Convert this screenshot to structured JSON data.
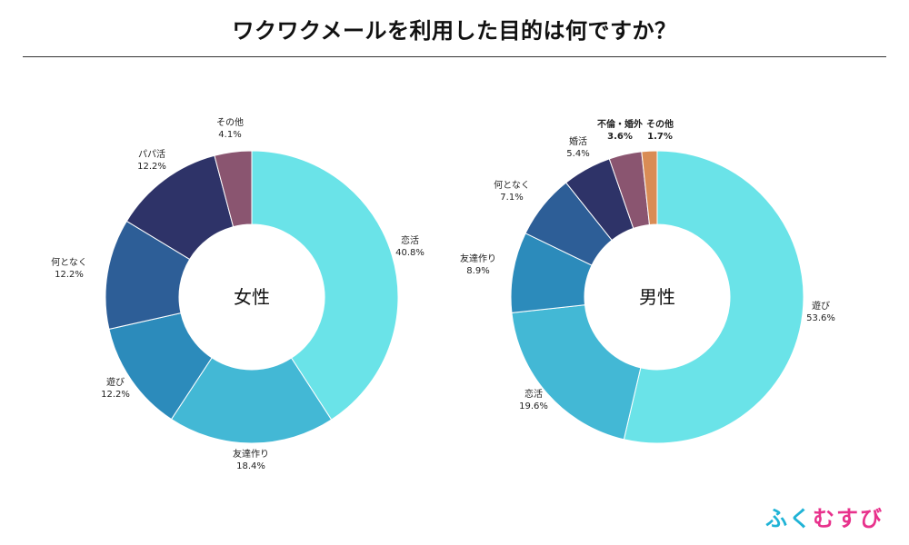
{
  "title": "ワクワクメールを利用した目的は何ですか？",
  "brand": {
    "chars": [
      "ふ",
      "く",
      "む",
      "す",
      "び"
    ],
    "colors": [
      "#1fb3d6",
      "#1fb3d6",
      "#e8328c",
      "#e8328c",
      "#e8328c"
    ]
  },
  "chart_data": [
    {
      "type": "pie",
      "title": "女性",
      "slices": [
        {
          "label": "恋活",
          "value": 40.8,
          "color": "#6ae3e8"
        },
        {
          "label": "友達作り",
          "value": 18.4,
          "color": "#43b8d5"
        },
        {
          "label": "遊び",
          "value": 12.2,
          "color": "#2c8bbb"
        },
        {
          "label": "何となく",
          "value": 12.2,
          "color": "#2d5e97"
        },
        {
          "label": "パパ活",
          "value": 12.2,
          "color": "#2e3368"
        },
        {
          "label": "その他",
          "value": 4.1,
          "color": "#8a5570"
        }
      ]
    },
    {
      "type": "pie",
      "title": "男性",
      "slices": [
        {
          "label": "遊び",
          "value": 53.6,
          "color": "#6ae3e8"
        },
        {
          "label": "恋活",
          "value": 19.6,
          "color": "#43b8d5"
        },
        {
          "label": "友達作り",
          "value": 8.9,
          "color": "#2c8bbb"
        },
        {
          "label": "何となく",
          "value": 7.1,
          "color": "#2d5e97"
        },
        {
          "label": "婚活",
          "value": 5.4,
          "color": "#2e3368"
        },
        {
          "label": "不倫・婚外",
          "value": 3.6,
          "color": "#8a5570"
        },
        {
          "label": "その他",
          "value": 1.7,
          "color": "#d98c55"
        }
      ]
    }
  ]
}
